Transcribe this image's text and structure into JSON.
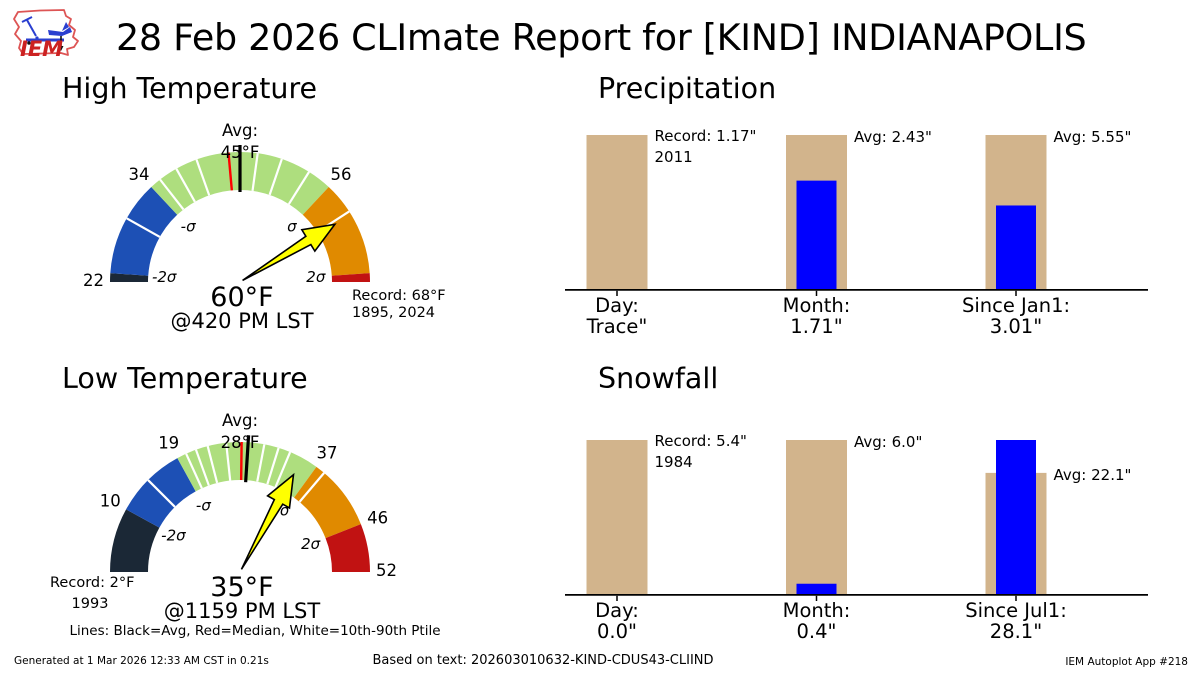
{
  "header": {
    "title": "28 Feb 2026 CLImate Report for [KIND] INDIANAPOLIS",
    "logo_text": "IEM"
  },
  "footer": {
    "generated": "Generated at 1 Mar 2026 12:33 AM CST in 0.21s",
    "based_on": "Based on text: 202603010632-KIND-CDUS43-CLIIND",
    "app": "IEM Autoplot App #218"
  },
  "colors": {
    "background": "#ffffff",
    "bar_reference": "#d2b48c",
    "bar_actual": "#0000ff",
    "needle_fill": "#ffff00",
    "needle_outline": "#000000",
    "avg_line": "#000000",
    "median_line": "#ff0000",
    "percentile_line": "#ffffff",
    "gauge_dark": "#1b2836",
    "gauge_blue": "#1d50b5",
    "gauge_green": "#aede7e",
    "gauge_orange": "#e08a00",
    "gauge_red": "#c11212",
    "logo_red": "#cc2222",
    "logo_blue": "#2a3fd0"
  },
  "chart_data": [
    {
      "type": "gauge",
      "title": "High Temperature",
      "min": 22,
      "max": 68,
      "avg": 45,
      "median": 43.7,
      "value": 60,
      "avg_label": [
        "Avg:",
        "45°F"
      ],
      "value_label": "60°F",
      "time_label": "@420 PM LST",
      "record_label": [
        "Record: 68°F",
        "1895, 2024"
      ],
      "segments": [
        {
          "from": 22,
          "to": 23,
          "color": "#1b2836"
        },
        {
          "from": 23,
          "to": 34,
          "color": "#1d50b5"
        },
        {
          "from": 34,
          "to": 56,
          "color": "#aede7e"
        },
        {
          "from": 56,
          "to": 67,
          "color": "#e08a00"
        },
        {
          "from": 67,
          "to": 68,
          "color": "#c11212"
        }
      ],
      "outer_ticks": [
        {
          "value": 22,
          "label": "22"
        },
        {
          "value": 34,
          "label": "34"
        },
        {
          "value": 56,
          "label": "56"
        }
      ],
      "sigma_labels": [
        {
          "value": 23,
          "label": "-2σ"
        },
        {
          "value": 34,
          "label": "-σ"
        },
        {
          "value": 56,
          "label": "σ"
        },
        {
          "value": 67,
          "label": "2σ"
        }
      ],
      "white_lines": [
        29.5,
        35.3,
        37.5,
        40,
        47,
        49.8,
        53.2,
        59.6
      ]
    },
    {
      "type": "gauge",
      "title": "Low Temperature",
      "min": 2,
      "max": 52,
      "avg": 28,
      "median": 27.2,
      "value": 35,
      "avg_label": [
        "Avg:",
        "28°F"
      ],
      "value_label": "35°F",
      "time_label": "@1159 PM LST",
      "record_label": [
        "Record: 2°F",
        "1993"
      ],
      "footnote": "Lines: Black=Avg, Red=Median, White=10th-90th Ptile",
      "segments": [
        {
          "from": 2,
          "to": 10,
          "color": "#1b2836"
        },
        {
          "from": 10,
          "to": 19,
          "color": "#1d50b5"
        },
        {
          "from": 19,
          "to": 37,
          "color": "#aede7e"
        },
        {
          "from": 37,
          "to": 46,
          "color": "#e08a00"
        },
        {
          "from": 46,
          "to": 52,
          "color": "#c11212"
        }
      ],
      "outer_ticks": [
        {
          "value": 10,
          "label": "10"
        },
        {
          "value": 19,
          "label": "19"
        },
        {
          "value": 37,
          "label": "37"
        },
        {
          "value": 46,
          "label": "46"
        },
        {
          "value": 52,
          "label": "52"
        }
      ],
      "sigma_labels": [
        {
          "value": 10,
          "label": "-2σ"
        },
        {
          "value": 19,
          "label": "-σ"
        },
        {
          "value": 37,
          "label": "σ"
        },
        {
          "value": 46,
          "label": "2σ"
        }
      ],
      "white_lines": [
        14.5,
        20.2,
        21.5,
        23,
        25.3,
        30,
        31.8,
        33.3,
        38.2
      ]
    },
    {
      "type": "bar",
      "title": "Precipitation",
      "groups": [
        {
          "label": "Day:",
          "value_label": "Trace\"",
          "actual": 0,
          "reference": 1.17,
          "ref_label": [
            "Record: 1.17\"",
            "2011"
          ]
        },
        {
          "label": "Month:",
          "value_label": "1.71\"",
          "actual": 1.71,
          "reference": 2.43,
          "ref_label": [
            "Avg: 2.43\""
          ]
        },
        {
          "label": "Since Jan1:",
          "value_label": "3.01\"",
          "actual": 3.01,
          "reference": 5.55,
          "ref_label": [
            "Avg: 5.55\""
          ]
        }
      ]
    },
    {
      "type": "bar",
      "title": "Snowfall",
      "groups": [
        {
          "label": "Day:",
          "value_label": "0.0\"",
          "actual": 0,
          "reference": 5.4,
          "ref_label": [
            "Record: 5.4\"",
            "1984"
          ]
        },
        {
          "label": "Month:",
          "value_label": "0.4\"",
          "actual": 0.4,
          "reference": 6.0,
          "ref_label": [
            "Avg: 6.0\""
          ]
        },
        {
          "label": "Since Jul1:",
          "value_label": "28.1\"",
          "actual": 28.1,
          "reference": 22.1,
          "ref_label": [
            "Avg: 22.1\""
          ]
        }
      ]
    }
  ]
}
